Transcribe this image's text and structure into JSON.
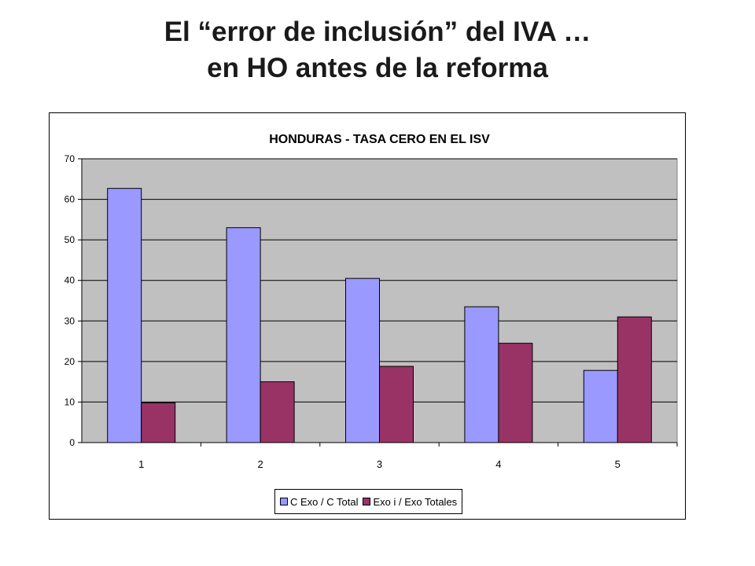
{
  "slide": {
    "title_line1": "El “error de inclusión” del IVA …",
    "title_line2": "en HO antes de la reforma"
  },
  "chart_data": {
    "type": "bar",
    "title": "HONDURAS - TASA CERO EN EL ISV",
    "categories": [
      "1",
      "2",
      "3",
      "4",
      "5"
    ],
    "series": [
      {
        "name": "C Exo / C Total",
        "values": [
          62.7,
          53.0,
          40.5,
          33.5,
          17.8
        ],
        "color": "#9999ff"
      },
      {
        "name": "Exo i / Exo Totales",
        "values": [
          9.8,
          15.0,
          18.8,
          24.5,
          31.0
        ],
        "color": "#993366"
      }
    ],
    "ylim": [
      0,
      70
    ],
    "yticks": [
      0,
      10,
      20,
      30,
      40,
      50,
      60,
      70
    ],
    "grid": true,
    "plot_background": "#c0c0c0",
    "legend_position": "bottom"
  }
}
